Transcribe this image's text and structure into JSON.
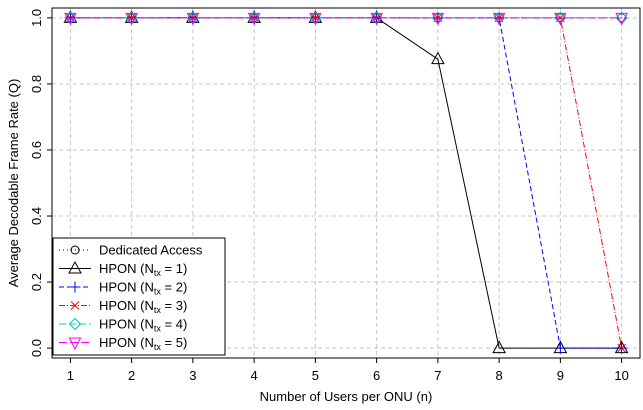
{
  "chart_data": {
    "type": "line",
    "title": "",
    "xlabel": "Number of Users per ONU (n)",
    "ylabel": "Average Decodable Frame Rate (Q)",
    "x": [
      1,
      2,
      3,
      4,
      5,
      6,
      7,
      8,
      9,
      10
    ],
    "xlim": [
      0.7,
      10.3
    ],
    "ylim": [
      -0.03,
      1.03
    ],
    "xticks": [
      "1",
      "2",
      "3",
      "4",
      "5",
      "6",
      "7",
      "8",
      "9",
      "10"
    ],
    "yticks": [
      "0.0",
      "0.2",
      "0.4",
      "0.6",
      "0.8",
      "1.0"
    ],
    "grid": true,
    "legend_position": "bottom-left",
    "series": [
      {
        "name": "Dedicated Access",
        "name_main": "Dedicated Access",
        "name_sub": "",
        "name_suffix": "",
        "color": "#000000",
        "dash": "1,3",
        "marker": "circle",
        "x": [
          1,
          2,
          3,
          4,
          5,
          6,
          7,
          8,
          9,
          10
        ],
        "y": [
          1,
          1,
          1,
          1,
          1,
          1,
          1,
          1,
          1,
          1
        ]
      },
      {
        "name": "HPON (Ntx = 1)",
        "name_main": "HPON (N",
        "name_sub": "tx",
        "name_suffix": " = 1)",
        "color": "#000000",
        "dash": "",
        "marker": "triangle-up",
        "x": [
          1,
          2,
          3,
          4,
          5,
          6,
          7,
          8,
          9,
          10
        ],
        "y": [
          1,
          1,
          1,
          1,
          1,
          1,
          0.875,
          0,
          0,
          0
        ]
      },
      {
        "name": "HPON (Ntx = 2)",
        "name_main": "HPON (N",
        "name_sub": "tx",
        "name_suffix": " = 2)",
        "color": "#0000ff",
        "dash": "5,3",
        "marker": "plus",
        "x": [
          1,
          2,
          3,
          4,
          5,
          6,
          7,
          8,
          9,
          10
        ],
        "y": [
          1,
          1,
          1,
          1,
          1,
          1,
          1,
          1,
          0,
          0
        ]
      },
      {
        "name": "HPON (Ntx = 3)",
        "name_main": "HPON (N",
        "name_sub": "tx",
        "name_suffix": " = 3)",
        "color": "#ff0000",
        "dash": "6,2,1,2",
        "marker": "x",
        "x": [
          1,
          2,
          3,
          4,
          5,
          6,
          7,
          8,
          9,
          10
        ],
        "y": [
          1,
          1,
          1,
          1,
          1,
          1,
          1,
          1,
          1,
          0
        ]
      },
      {
        "name": "HPON (Ntx = 4)",
        "name_main": "HPON (N",
        "name_sub": "tx",
        "name_suffix": " = 4)",
        "color": "#00cccc",
        "dash": "7,3",
        "marker": "diamond",
        "x": [
          1,
          2,
          3,
          4,
          5,
          6,
          7,
          8,
          9,
          10
        ],
        "y": [
          1,
          1,
          1,
          1,
          1,
          1,
          1,
          1,
          1,
          1
        ]
      },
      {
        "name": "HPON (Ntx = 5)",
        "name_main": "HPON (N",
        "name_sub": "tx",
        "name_suffix": " = 5)",
        "color": "#ff00ff",
        "dash": "8,3",
        "marker": "triangle-down",
        "x": [
          1,
          2,
          3,
          4,
          5,
          6,
          7,
          8,
          9,
          10
        ],
        "y": [
          1,
          1,
          1,
          1,
          1,
          1,
          1,
          1,
          1,
          1
        ]
      }
    ]
  }
}
